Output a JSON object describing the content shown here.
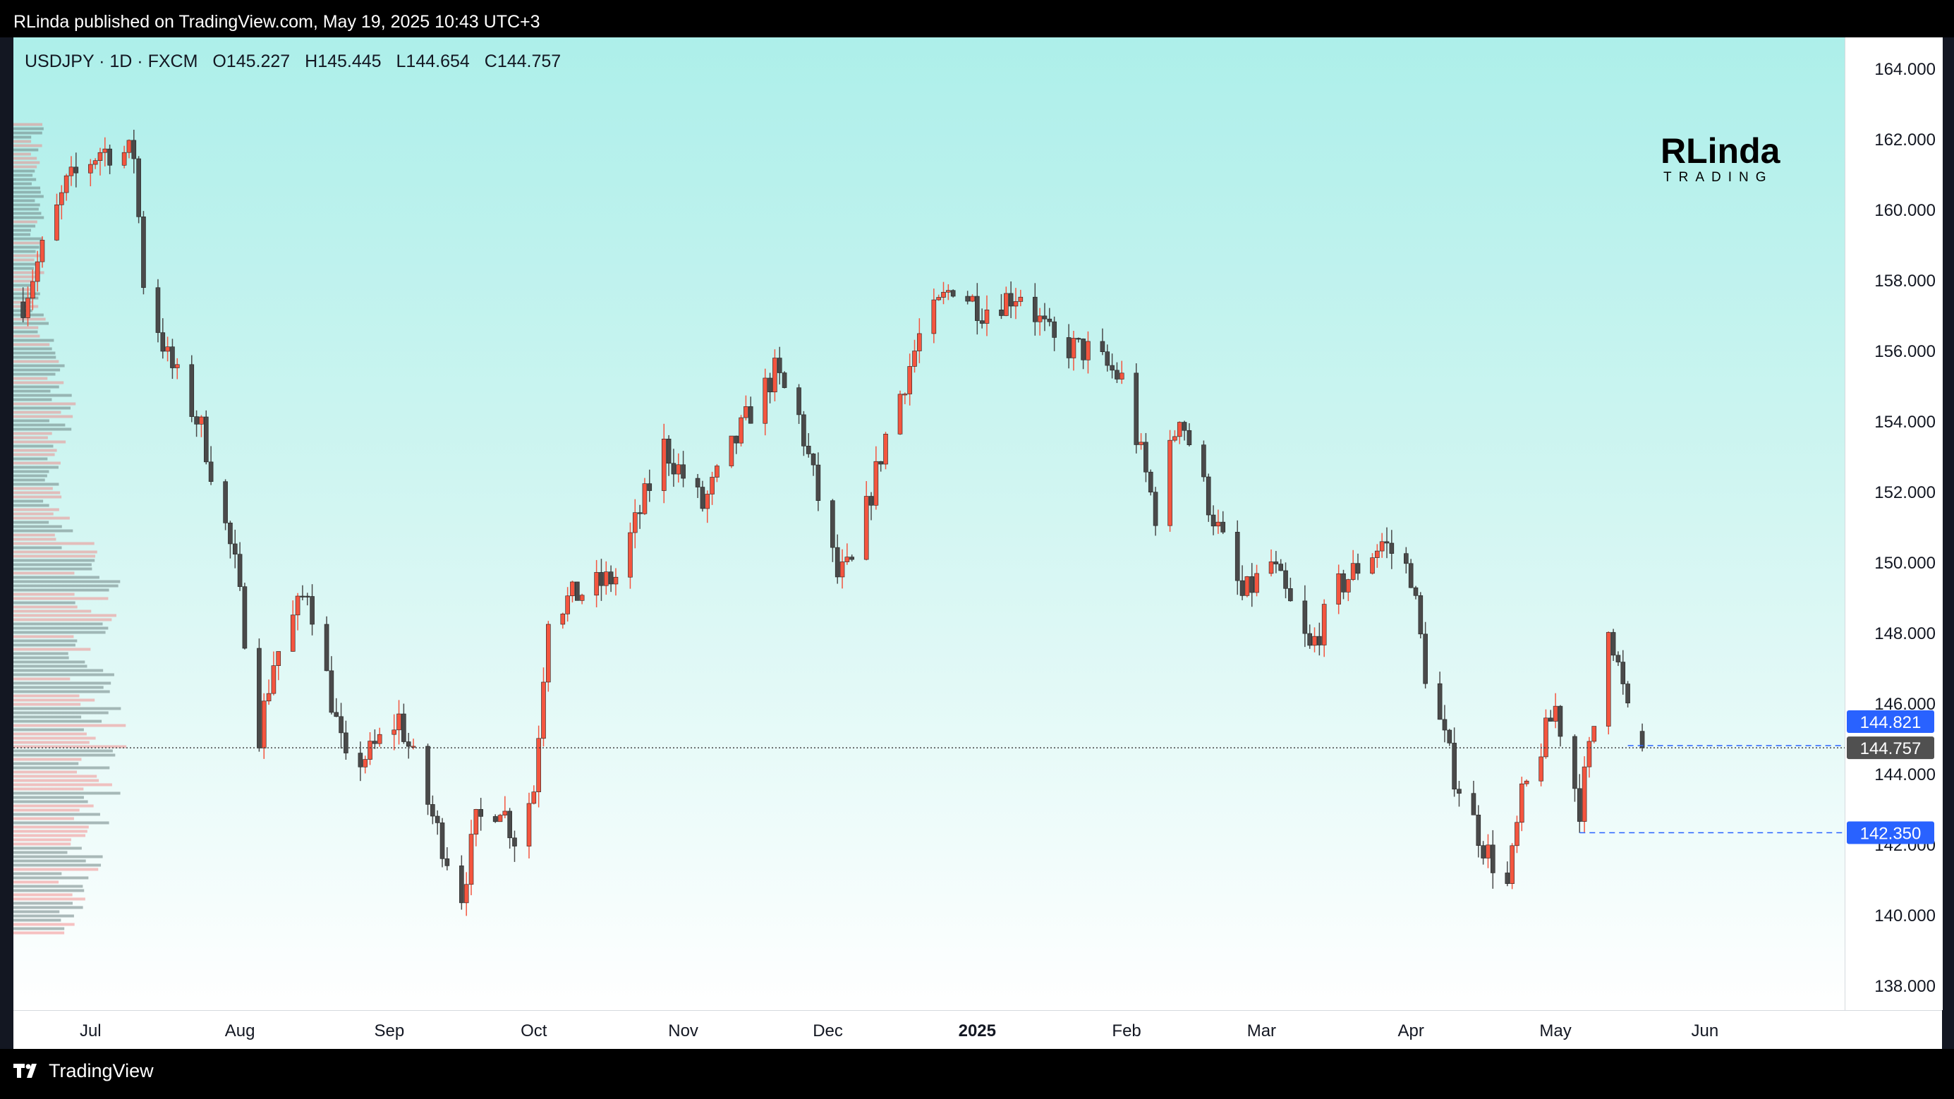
{
  "header": {
    "published": "RLinda published on TradingView.com, May 19, 2025 10:43 UTC+3"
  },
  "legend": {
    "symbol": "USDJPY · 1D · FXCM",
    "open": "O145.227",
    "high": "H145.445",
    "low": "L144.654",
    "close": "C144.757"
  },
  "brand": {
    "logo_text": "RLinda",
    "logo_sub": "TRADING"
  },
  "footer": {
    "logo_label": "TradingView"
  },
  "colors": {
    "up": "#f4553f",
    "down": "#4a4a4a",
    "last_price_bg": "#505050",
    "price_badge_bg": "#2962ff",
    "plot_top": "#adefea",
    "plot_bottom": "#ffffff"
  },
  "chart_data": {
    "type": "candlestick",
    "symbol": "USDJPY",
    "timeframe": "1D",
    "ylim": [
      137,
      165
    ],
    "y_ticks": [
      "138.000",
      "140.000",
      "142.000",
      "144.000",
      "146.000",
      "148.000",
      "150.000",
      "152.000",
      "154.000",
      "156.000",
      "158.000",
      "160.000",
      "162.000",
      "164.000"
    ],
    "x_ticks": [
      {
        "label": "Jul",
        "date": "2024-07-01"
      },
      {
        "label": "Aug",
        "date": "2024-08-01"
      },
      {
        "label": "Sep",
        "date": "2024-09-01"
      },
      {
        "label": "Oct",
        "date": "2024-10-01"
      },
      {
        "label": "Nov",
        "date": "2024-11-01"
      },
      {
        "label": "Dec",
        "date": "2024-12-01"
      },
      {
        "label": "2025",
        "date": "2025-01-01",
        "bold": true
      },
      {
        "label": "Feb",
        "date": "2025-02-01"
      },
      {
        "label": "Mar",
        "date": "2025-03-01"
      },
      {
        "label": "Apr",
        "date": "2025-04-01"
      },
      {
        "label": "May",
        "date": "2025-05-01"
      },
      {
        "label": "Jun",
        "date": "2025-06-01"
      }
    ],
    "x_range": [
      "2024-06-15",
      "2025-06-30"
    ],
    "price_labels": [
      {
        "value": 144.821,
        "text": "144.821",
        "style": "badge"
      },
      {
        "value": 144.757,
        "text": "144.757",
        "style": "last"
      },
      {
        "value": 142.35,
        "text": "142.350",
        "style": "badge"
      }
    ],
    "levels": [
      {
        "value": 144.757,
        "from": "2024-06-15",
        "style": "dotted-dark"
      },
      {
        "value": 144.821,
        "from": "2025-05-16",
        "style": "dashed-blue"
      },
      {
        "value": 142.35,
        "from": "2025-05-06",
        "style": "dashed-blue"
      }
    ],
    "series": [
      {
        "name": "USDJPY",
        "x_from": "2024-06-17",
        "x_to": "2025-05-19",
        "anchors": [
          [
            "2024-06-17",
            157.4
          ],
          [
            "2024-06-26",
            160.7
          ],
          [
            "2024-07-03",
            161.7
          ],
          [
            "2024-07-10",
            161.6
          ],
          [
            "2024-07-12",
            158.0
          ],
          [
            "2024-07-17",
            155.8
          ],
          [
            "2024-07-24",
            153.8
          ],
          [
            "2024-07-31",
            149.9
          ],
          [
            "2024-08-05",
            145.2
          ],
          [
            "2024-08-08",
            147.2
          ],
          [
            "2024-08-15",
            149.3
          ],
          [
            "2024-08-23",
            144.2
          ],
          [
            "2024-08-28",
            144.6
          ],
          [
            "2024-09-03",
            145.6
          ],
          [
            "2024-09-11",
            142.4
          ],
          [
            "2024-09-16",
            140.6
          ],
          [
            "2024-09-19",
            142.6
          ],
          [
            "2024-09-24",
            143.2
          ],
          [
            "2024-09-27",
            142.2
          ],
          [
            "2024-10-01",
            143.6
          ],
          [
            "2024-10-04",
            148.6
          ],
          [
            "2024-10-10",
            149.1
          ],
          [
            "2024-10-18",
            149.6
          ],
          [
            "2024-10-28",
            153.3
          ],
          [
            "2024-11-05",
            151.6
          ],
          [
            "2024-11-15",
            154.3
          ],
          [
            "2024-11-20",
            155.4
          ],
          [
            "2024-11-25",
            154.1
          ],
          [
            "2024-12-03",
            149.6
          ],
          [
            "2024-12-06",
            149.9
          ],
          [
            "2024-12-13",
            153.6
          ],
          [
            "2024-12-20",
            156.4
          ],
          [
            "2024-12-27",
            157.9
          ],
          [
            "2025-01-02",
            157.2
          ],
          [
            "2025-01-10",
            157.7
          ],
          [
            "2025-01-17",
            156.2
          ],
          [
            "2025-01-24",
            156.0
          ],
          [
            "2025-01-31",
            155.2
          ],
          [
            "2025-02-07",
            151.4
          ],
          [
            "2025-02-12",
            154.3
          ],
          [
            "2025-02-18",
            151.7
          ],
          [
            "2025-02-25",
            149.0
          ],
          [
            "2025-03-03",
            150.0
          ],
          [
            "2025-03-11",
            147.5
          ],
          [
            "2025-03-17",
            149.3
          ],
          [
            "2025-03-26",
            150.6
          ],
          [
            "2025-04-01",
            149.7
          ],
          [
            "2025-04-04",
            146.9
          ],
          [
            "2025-04-10",
            144.0
          ],
          [
            "2025-04-16",
            142.0
          ],
          [
            "2025-04-21",
            140.8
          ],
          [
            "2025-04-24",
            143.3
          ],
          [
            "2025-05-01",
            145.9
          ],
          [
            "2025-05-06",
            143.1
          ],
          [
            "2025-05-09",
            145.4
          ],
          [
            "2025-05-12",
            148.4
          ],
          [
            "2025-05-16",
            145.7
          ],
          [
            "2025-05-19",
            144.757
          ]
        ]
      }
    ],
    "volume_profile": {
      "side": "left",
      "price_range": [
        139.5,
        162.5
      ]
    }
  }
}
